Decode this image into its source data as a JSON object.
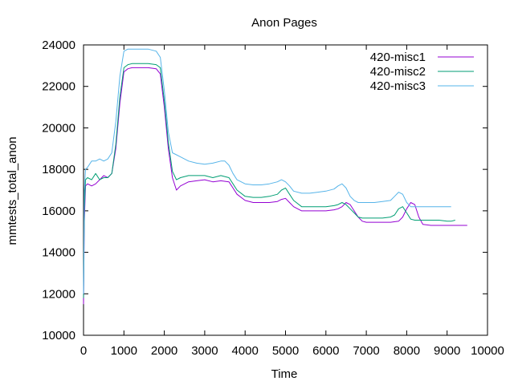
{
  "chart_data": {
    "type": "line",
    "title": "Anon Pages",
    "xlabel": "Time",
    "ylabel": "mmtests_total_anon",
    "xlim": [
      0,
      10000
    ],
    "ylim": [
      10000,
      24000
    ],
    "x_ticks": [
      0,
      1000,
      2000,
      3000,
      4000,
      5000,
      6000,
      7000,
      8000,
      9000,
      10000
    ],
    "y_ticks": [
      10000,
      12000,
      14000,
      16000,
      18000,
      20000,
      22000,
      24000
    ],
    "x_tick_labels": [
      "0",
      "1000",
      "2000",
      "3000",
      "4000",
      "5000",
      "6000",
      "7000",
      "8000",
      "9000",
      "10000"
    ],
    "y_tick_labels": [
      "10000",
      "12000",
      "14000",
      "16000",
      "18000",
      "20000",
      "22000",
      "24000"
    ],
    "grid": false,
    "legend_position": "top-right",
    "series": [
      {
        "name": "420-misc1",
        "color": "#9400d3",
        "x": [
          0,
          20,
          50,
          100,
          200,
          300,
          400,
          500,
          600,
          700,
          800,
          900,
          1000,
          1100,
          1200,
          1400,
          1600,
          1800,
          1900,
          2000,
          2100,
          2200,
          2300,
          2400,
          2600,
          2800,
          3000,
          3200,
          3400,
          3600,
          3700,
          3800,
          4000,
          4200,
          4400,
          4600,
          4800,
          4900,
          5000,
          5100,
          5200,
          5400,
          5600,
          5800,
          6000,
          6200,
          6300,
          6400,
          6500,
          6600,
          6700,
          6800,
          6900,
          7000,
          7200,
          7400,
          7600,
          7800,
          7900,
          8000,
          8100,
          8200,
          8300,
          8400,
          8600,
          8800,
          9000,
          9200,
          9400,
          9500
        ],
        "y": [
          11500,
          15500,
          17200,
          17300,
          17200,
          17300,
          17500,
          17700,
          17600,
          17800,
          19000,
          21200,
          22700,
          22850,
          22900,
          22900,
          22900,
          22850,
          22600,
          21000,
          19000,
          17600,
          17000,
          17200,
          17400,
          17450,
          17500,
          17400,
          17450,
          17400,
          17100,
          16800,
          16500,
          16400,
          16400,
          16400,
          16450,
          16550,
          16600,
          16400,
          16200,
          16000,
          16000,
          16000,
          16000,
          16050,
          16100,
          16200,
          16400,
          16300,
          16000,
          15700,
          15500,
          15450,
          15450,
          15450,
          15450,
          15500,
          15700,
          16100,
          16400,
          16300,
          15700,
          15350,
          15300,
          15300,
          15300,
          15300,
          15300,
          15300
        ]
      },
      {
        "name": "420-misc2",
        "color": "#009e73",
        "x": [
          0,
          20,
          50,
          100,
          200,
          300,
          400,
          500,
          600,
          700,
          800,
          900,
          1000,
          1100,
          1200,
          1400,
          1600,
          1800,
          1900,
          2000,
          2100,
          2200,
          2300,
          2400,
          2600,
          2800,
          3000,
          3200,
          3400,
          3600,
          3700,
          3800,
          4000,
          4200,
          4400,
          4600,
          4800,
          4900,
          5000,
          5100,
          5200,
          5400,
          5600,
          5800,
          6000,
          6200,
          6300,
          6400,
          6500,
          6600,
          6700,
          6800,
          6900,
          7000,
          7200,
          7400,
          7600,
          7700,
          7800,
          7900,
          8000,
          8100,
          8200,
          8400,
          8600,
          8800,
          9000,
          9100,
          9200
        ],
        "y": [
          11800,
          16000,
          17500,
          17600,
          17500,
          17800,
          17500,
          17600,
          17600,
          17800,
          19200,
          21500,
          22900,
          23050,
          23100,
          23100,
          23100,
          23050,
          22900,
          21300,
          19300,
          17900,
          17500,
          17600,
          17700,
          17700,
          17700,
          17600,
          17700,
          17600,
          17300,
          17000,
          16700,
          16650,
          16650,
          16700,
          16800,
          17000,
          17100,
          16800,
          16500,
          16200,
          16200,
          16200,
          16200,
          16250,
          16300,
          16400,
          16300,
          16100,
          15900,
          15700,
          15650,
          15650,
          15650,
          15650,
          15700,
          15800,
          16100,
          16200,
          15900,
          15600,
          15550,
          15550,
          15550,
          15550,
          15500,
          15500,
          15550
        ]
      },
      {
        "name": "420-misc3",
        "color": "#56b4e9",
        "x": [
          0,
          20,
          50,
          100,
          200,
          300,
          400,
          500,
          600,
          700,
          800,
          900,
          1000,
          1100,
          1200,
          1400,
          1600,
          1800,
          1900,
          2000,
          2100,
          2200,
          2300,
          2400,
          2600,
          2800,
          3000,
          3200,
          3400,
          3500,
          3600,
          3700,
          3800,
          4000,
          4200,
          4400,
          4600,
          4800,
          4900,
          5000,
          5100,
          5200,
          5400,
          5600,
          5800,
          6000,
          6200,
          6300,
          6400,
          6500,
          6600,
          6700,
          6800,
          7000,
          7200,
          7400,
          7600,
          7700,
          7800,
          7900,
          8000,
          8100,
          8200,
          8400,
          8600,
          8800,
          9000,
          9100
        ],
        "y": [
          12000,
          17000,
          18000,
          18100,
          18400,
          18400,
          18500,
          18400,
          18500,
          18800,
          20300,
          22500,
          23700,
          23800,
          23800,
          23800,
          23800,
          23700,
          23400,
          21800,
          19800,
          18800,
          18700,
          18600,
          18400,
          18300,
          18250,
          18300,
          18400,
          18400,
          18200,
          17800,
          17500,
          17300,
          17250,
          17250,
          17300,
          17400,
          17500,
          17400,
          17200,
          16950,
          16850,
          16850,
          16900,
          16950,
          17050,
          17200,
          17300,
          17100,
          16700,
          16500,
          16400,
          16400,
          16400,
          16450,
          16500,
          16700,
          16900,
          16800,
          16400,
          16200,
          16200,
          16200,
          16200,
          16200,
          16200,
          16200
        ]
      }
    ]
  }
}
